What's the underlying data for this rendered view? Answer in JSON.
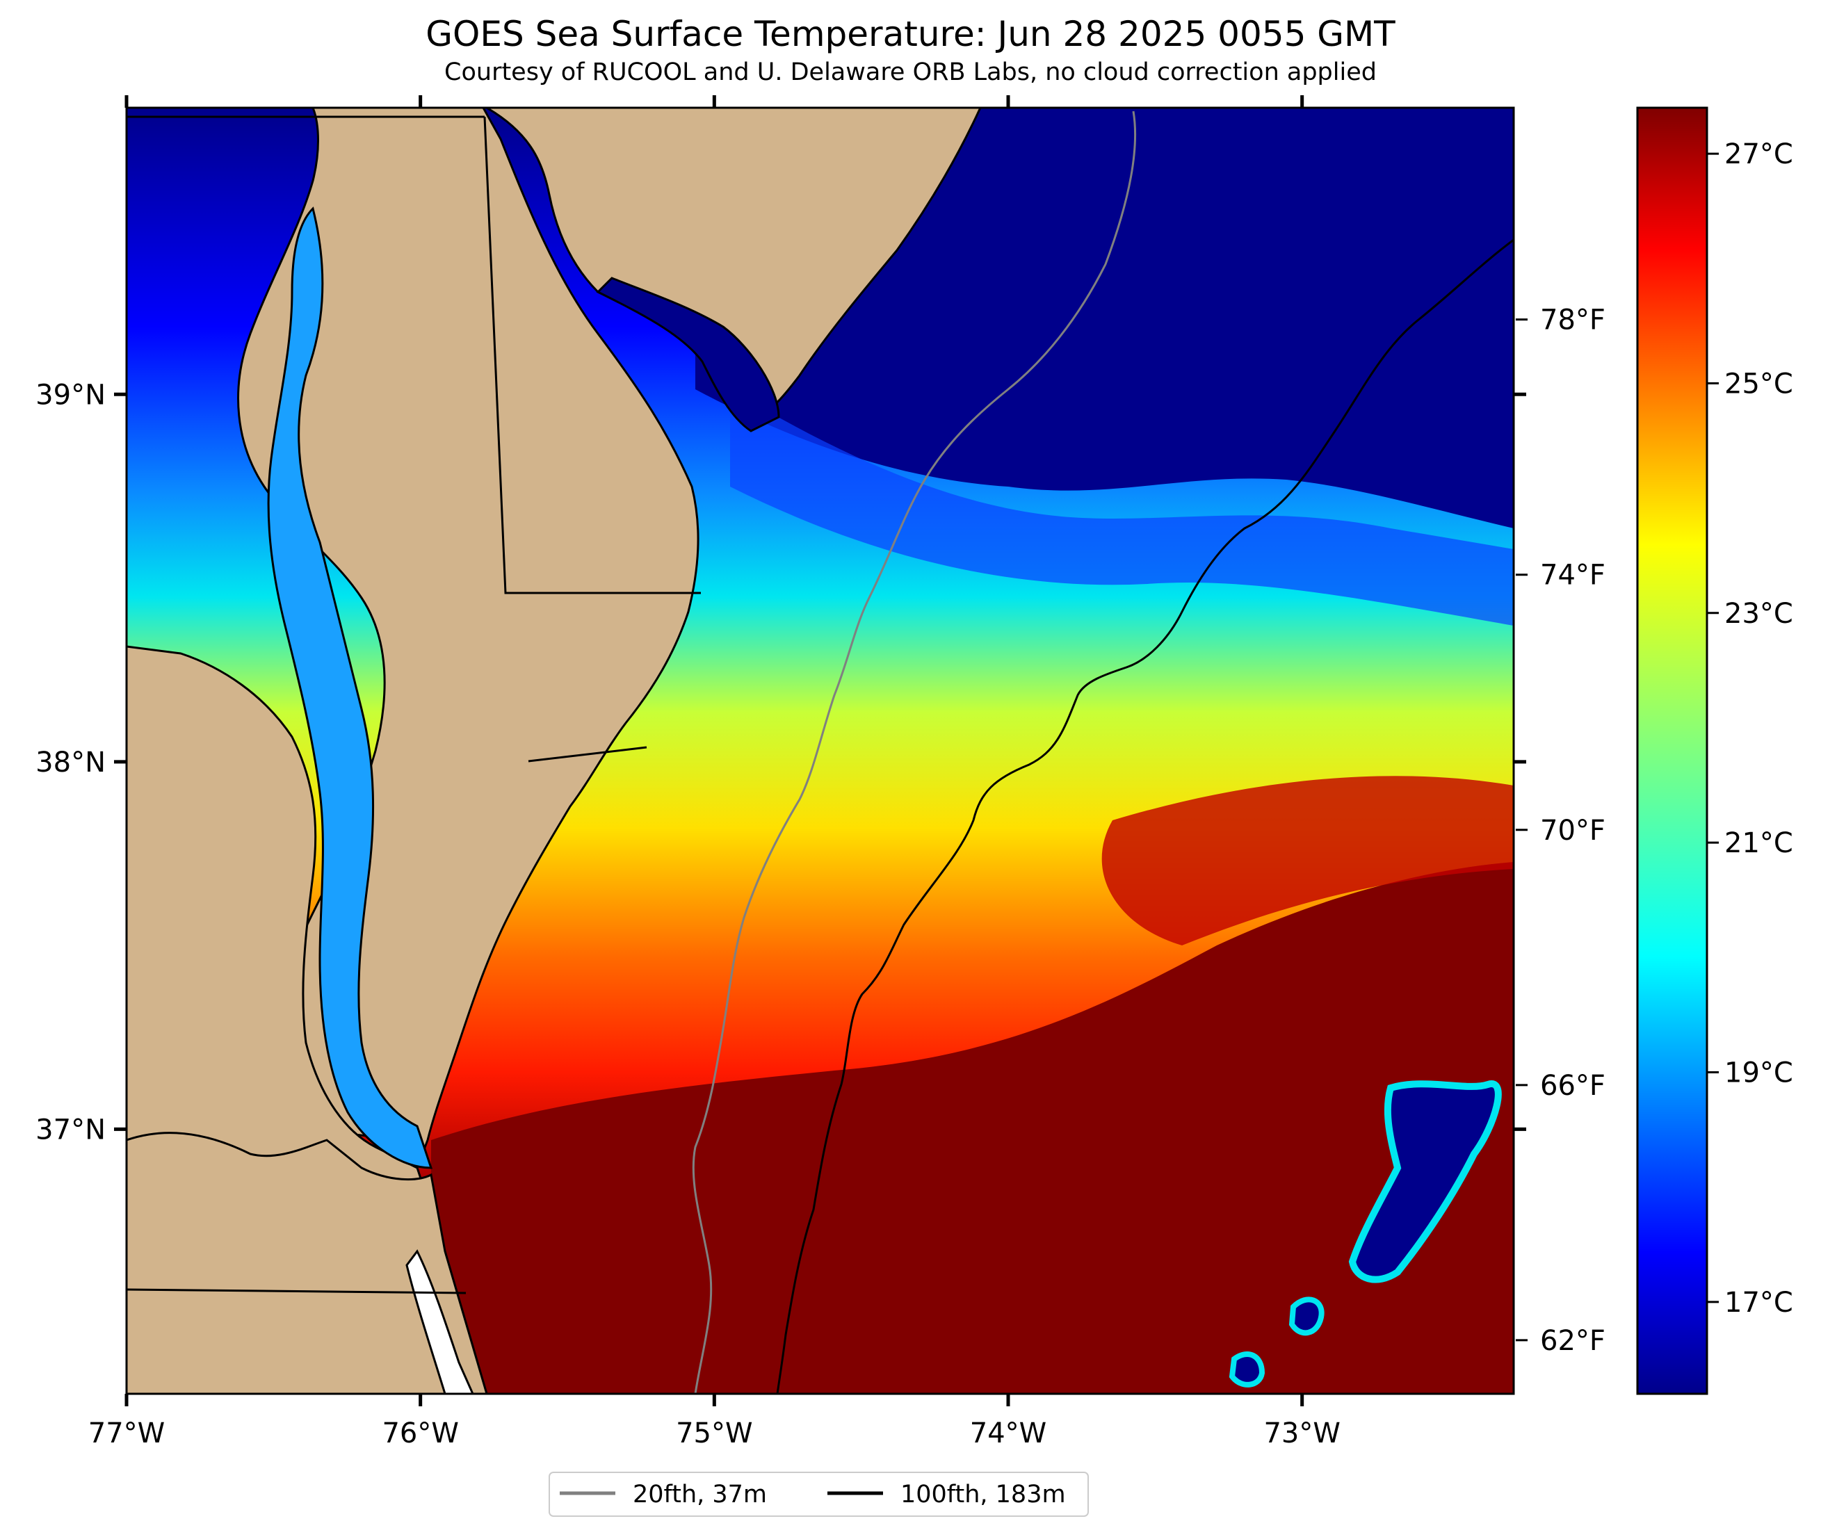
{
  "title": "GOES Sea Surface Temperature: Jun 28 2025 0055 GMT",
  "subtitle": "Courtesy of RUCOOL and U. Delaware ORB Labs, no cloud correction applied",
  "map": {
    "lon_range": [
      -77.0,
      -72.28
    ],
    "lat_range": [
      36.28,
      39.78
    ],
    "lon_ticks": [
      {
        "value": -77,
        "label": "77°W"
      },
      {
        "value": -76,
        "label": "76°W"
      },
      {
        "value": -75,
        "label": "75°W"
      },
      {
        "value": -74,
        "label": "74°W"
      },
      {
        "value": -73,
        "label": "73°W"
      }
    ],
    "lat_ticks": [
      {
        "value": 39,
        "label": "39°N"
      },
      {
        "value": 38,
        "label": "38°N"
      },
      {
        "value": 37,
        "label": "37°N"
      }
    ],
    "land_color": "#d2b48c",
    "cold_color": "#00008b",
    "warm_color": "#800000"
  },
  "colorbar": {
    "range_c": [
      16.2,
      27.4
    ],
    "celsius_ticks": [
      {
        "value": 17,
        "label": "17°C"
      },
      {
        "value": 19,
        "label": "19°C"
      },
      {
        "value": 21,
        "label": "21°C"
      },
      {
        "value": 23,
        "label": "23°C"
      },
      {
        "value": 25,
        "label": "25°C"
      },
      {
        "value": 27,
        "label": "27°C"
      }
    ],
    "fahrenheit_ticks": [
      {
        "value": 62,
        "label": "62°F"
      },
      {
        "value": 66,
        "label": "66°F"
      },
      {
        "value": 70,
        "label": "70°F"
      },
      {
        "value": 74,
        "label": "74°F"
      },
      {
        "value": 78,
        "label": "78°F"
      }
    ],
    "colormap": "jet"
  },
  "legend": {
    "items": [
      {
        "label": "20fth, 37m",
        "color": "#808080"
      },
      {
        "label": "100fth, 183m",
        "color": "#000000"
      }
    ]
  }
}
